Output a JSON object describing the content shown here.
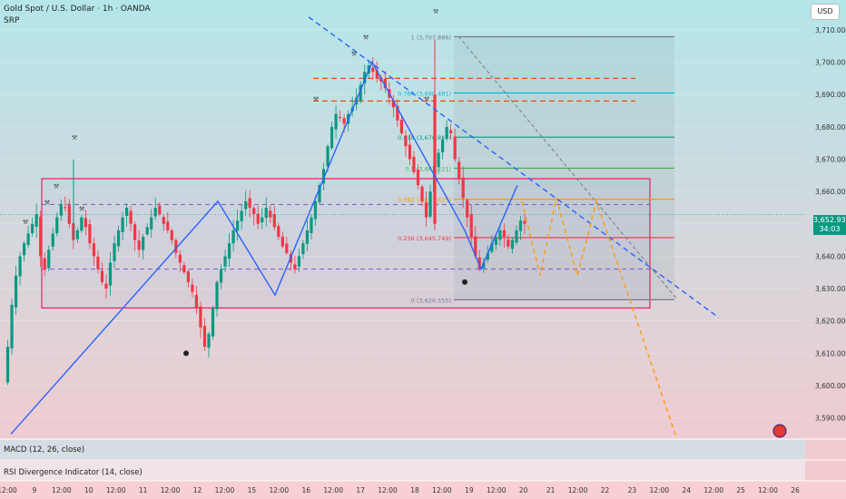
{
  "header": {
    "symbol_line": "Gold Spot / U.S. Dollar · 1h · OANDA",
    "indicator": "SRP"
  },
  "currency_badge": "USD",
  "last_price": {
    "value": "3,652.935",
    "countdown": "34:03"
  },
  "panes": {
    "macd_label": "MACD (12, 26, close)",
    "rsi_label": "RSI Divergence Indicator (14, close)"
  },
  "colors": {
    "bg_top": "#b4e6ea",
    "bg_bottom": "#f7c8cd",
    "candle_up": "#089981",
    "candle_down": "#f23645",
    "box": "#e91e63",
    "trend": "#2962ff",
    "forecast": "#ff9800",
    "fib_red": "#f23645",
    "fib_orange": "#ff9800",
    "fib_green": "#4caf50",
    "fib_teal": "#089981",
    "fib_cyan": "#00bcd4",
    "fib_gray": "#787b86"
  },
  "chart_data": {
    "type": "candlestick",
    "symbol": "XAUUSD",
    "timeframe": "1h",
    "ylim": [
      3584,
      3717
    ],
    "y_ticks": [
      "3,590.000",
      "3,600.000",
      "3,610.000",
      "3,620.000",
      "3,630.000",
      "3,640.000",
      "3,650.000",
      "3,660.000",
      "3,670.000",
      "3,680.000",
      "3,690.000",
      "3,700.000",
      "3,710.000"
    ],
    "x_ticks": [
      "12:00",
      "9",
      "12:00",
      "10",
      "12:00",
      "11",
      "12:00",
      "12",
      "12:00",
      "15",
      "12:00",
      "16",
      "12:00",
      "17",
      "12:00",
      "18",
      "12:00",
      "19",
      "12:00",
      "20",
      "21",
      "12:00",
      "22",
      "23",
      "12:00",
      "24",
      "12:00",
      "25",
      "12:00",
      "26"
    ],
    "price_path": [
      3601,
      3612,
      3625,
      3634,
      3640,
      3644,
      3647,
      3650,
      3653,
      3640,
      3636,
      3642,
      3647,
      3652,
      3656,
      3655,
      3650,
      3645,
      3648,
      3652,
      3649,
      3644,
      3640,
      3636,
      3632,
      3630,
      3638,
      3644,
      3648,
      3652,
      3655,
      3650,
      3645,
      3642,
      3646,
      3649,
      3652,
      3655,
      3653,
      3650,
      3648,
      3645,
      3641,
      3638,
      3635,
      3632,
      3629,
      3624,
      3618,
      3612,
      3616,
      3624,
      3632,
      3636,
      3640,
      3644,
      3648,
      3651,
      3654,
      3657,
      3655,
      3653,
      3650,
      3652,
      3655,
      3652,
      3649,
      3646,
      3643,
      3641,
      3638,
      3636,
      3640,
      3644,
      3648,
      3652,
      3657,
      3662,
      3667,
      3674,
      3680,
      3684,
      3683,
      3681,
      3684,
      3686,
      3689,
      3693,
      3697,
      3699,
      3697,
      3695,
      3694,
      3692,
      3689,
      3686,
      3682,
      3678,
      3674,
      3670,
      3666,
      3662,
      3657,
      3652,
      3660,
      3668,
      3672,
      3676,
      3680,
      3678,
      3670,
      3664,
      3658,
      3652,
      3646,
      3640,
      3636,
      3638,
      3641,
      3644,
      3646,
      3648,
      3646,
      3643,
      3645,
      3648,
      3651,
      3650
    ],
    "last_price": 3652.935,
    "fibonacci": [
      {
        "level": "1",
        "price": 3707.886
      },
      {
        "level": "0.786",
        "price": 3690.481
      },
      {
        "level": "0.618",
        "price": 3676.817
      },
      {
        "level": "0.5",
        "price": 3667.221
      },
      {
        "level": "0.382",
        "price": 3657.625
      },
      {
        "level": "0.236",
        "price": 3645.749
      },
      {
        "level": "0",
        "price": 3626.555
      }
    ],
    "fib_labels": [
      "1 (3,707.886)",
      "0.786 (3,690.481)",
      "0.618 (3,676.817)",
      "0.5 (3,667.221)",
      "0.382 (3,657.625)",
      "0.236 (3,645.749)",
      "0 (3,626.555)"
    ],
    "range_box": {
      "top": 3664,
      "bottom": 3624
    },
    "dashed_levels": {
      "purple": [
        3656,
        3636
      ],
      "orange": [
        3695,
        3688
      ]
    },
    "zigzag": [
      [
        3585
      ],
      [
        3657
      ],
      [
        3628
      ],
      [
        3700
      ],
      [
        3648
      ],
      [
        3636
      ],
      [
        3662
      ]
    ],
    "forecast_path": [
      3657,
      3634,
      3658,
      3634,
      3657,
      3584
    ]
  }
}
